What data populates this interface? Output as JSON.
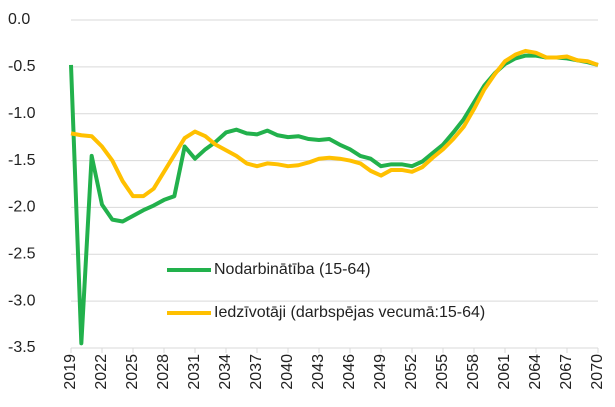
{
  "chart_data": {
    "type": "line",
    "x": [
      2019,
      2020,
      2021,
      2022,
      2023,
      2024,
      2025,
      2026,
      2027,
      2028,
      2029,
      2030,
      2031,
      2032,
      2033,
      2034,
      2035,
      2036,
      2037,
      2038,
      2039,
      2040,
      2041,
      2042,
      2043,
      2044,
      2045,
      2046,
      2047,
      2048,
      2049,
      2050,
      2051,
      2052,
      2053,
      2054,
      2055,
      2056,
      2057,
      2058,
      2059,
      2060,
      2061,
      2062,
      2063,
      2064,
      2065,
      2066,
      2067,
      2068,
      2069,
      2070
    ],
    "series": [
      {
        "name": "Nodarbinātība (15-64)",
        "color": "#22b14c",
        "values": [
          -0.48,
          -3.45,
          -1.45,
          -1.97,
          -2.13,
          -2.15,
          -2.09,
          -2.03,
          -1.98,
          -1.92,
          -1.88,
          -1.35,
          -1.48,
          -1.38,
          -1.3,
          -1.2,
          -1.17,
          -1.21,
          -1.22,
          -1.18,
          -1.23,
          -1.25,
          -1.24,
          -1.27,
          -1.28,
          -1.27,
          -1.33,
          -1.38,
          -1.45,
          -1.48,
          -1.56,
          -1.54,
          -1.54,
          -1.56,
          -1.51,
          -1.42,
          -1.33,
          -1.2,
          -1.06,
          -0.88,
          -0.7,
          -0.57,
          -0.47,
          -0.41,
          -0.38,
          -0.38,
          -0.4,
          -0.4,
          -0.41,
          -0.43,
          -0.45,
          -0.48
        ]
      },
      {
        "name": "Iedzīvotāji (darbspējas vecumā:15-64)",
        "color": "#ffc000",
        "values": [
          -1.21,
          -1.23,
          -1.24,
          -1.35,
          -1.5,
          -1.72,
          -1.88,
          -1.88,
          -1.8,
          -1.62,
          -1.44,
          -1.26,
          -1.19,
          -1.24,
          -1.33,
          -1.39,
          -1.45,
          -1.53,
          -1.56,
          -1.53,
          -1.54,
          -1.56,
          -1.55,
          -1.52,
          -1.48,
          -1.47,
          -1.48,
          -1.5,
          -1.53,
          -1.61,
          -1.66,
          -1.6,
          -1.6,
          -1.62,
          -1.57,
          -1.47,
          -1.38,
          -1.27,
          -1.14,
          -0.95,
          -0.74,
          -0.58,
          -0.44,
          -0.37,
          -0.33,
          -0.35,
          -0.4,
          -0.4,
          -0.39,
          -0.43,
          -0.44,
          -0.48
        ]
      }
    ],
    "xlim": [
      2019,
      2070
    ],
    "xticks": [
      2019,
      2022,
      2025,
      2028,
      2031,
      2034,
      2037,
      2040,
      2043,
      2046,
      2049,
      2052,
      2055,
      2058,
      2061,
      2064,
      2067,
      2070
    ],
    "ylim": [
      -3.5,
      0
    ],
    "yticks": [
      {
        "value": 0,
        "label": "0.0"
      },
      -0.5,
      {
        "value": -1,
        "label": "-1.0"
      },
      -1.5,
      {
        "value": -2,
        "label": "-2.0"
      },
      -2.5,
      {
        "value": -3,
        "label": "-3.0"
      },
      -3.5
    ],
    "grid": true
  }
}
